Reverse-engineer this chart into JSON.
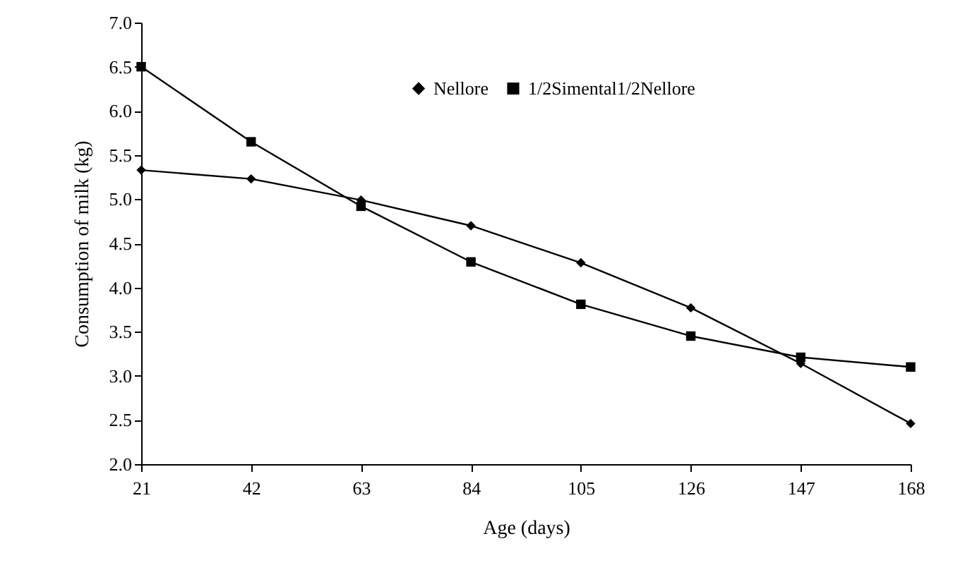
{
  "chart_data": {
    "type": "line",
    "xlabel": "Age (days)",
    "ylabel": "Consumption of milk (kg)",
    "x": [
      21,
      42,
      63,
      84,
      105,
      126,
      147,
      168
    ],
    "xlim": [
      21,
      168
    ],
    "xticks": [
      21,
      42,
      63,
      84,
      105,
      126,
      147,
      168
    ],
    "ylim": [
      2.0,
      7.0
    ],
    "yticks": [
      {
        "value": 2,
        "label": "2.0"
      },
      {
        "value": 2.5,
        "label": "2.5"
      },
      {
        "value": 3,
        "label": "3.0"
      },
      {
        "value": 3.5,
        "label": "3.5"
      },
      {
        "value": 4,
        "label": "4.0"
      },
      {
        "value": 4.5,
        "label": "4.5"
      },
      {
        "value": 5,
        "label": "5.0"
      },
      {
        "value": 5.5,
        "label": "5.5"
      },
      {
        "value": 6,
        "label": "6.0"
      },
      {
        "value": 6.5,
        "label": "6.5"
      },
      {
        "value": 7,
        "label": "7.0"
      }
    ],
    "grid": false,
    "legend": "top",
    "line_style": "solid",
    "series": [
      {
        "name": "Nellore",
        "color": "#000000",
        "marker": "diamond",
        "values": [
          5.33,
          5.23,
          4.99,
          4.7,
          4.28,
          3.77,
          3.14,
          2.46
        ]
      },
      {
        "name": "1/2Simental1/2Nellore",
        "color": "#000000",
        "marker": "square",
        "values": [
          6.5,
          5.65,
          4.92,
          4.29,
          3.81,
          3.45,
          3.21,
          3.1
        ]
      }
    ]
  }
}
